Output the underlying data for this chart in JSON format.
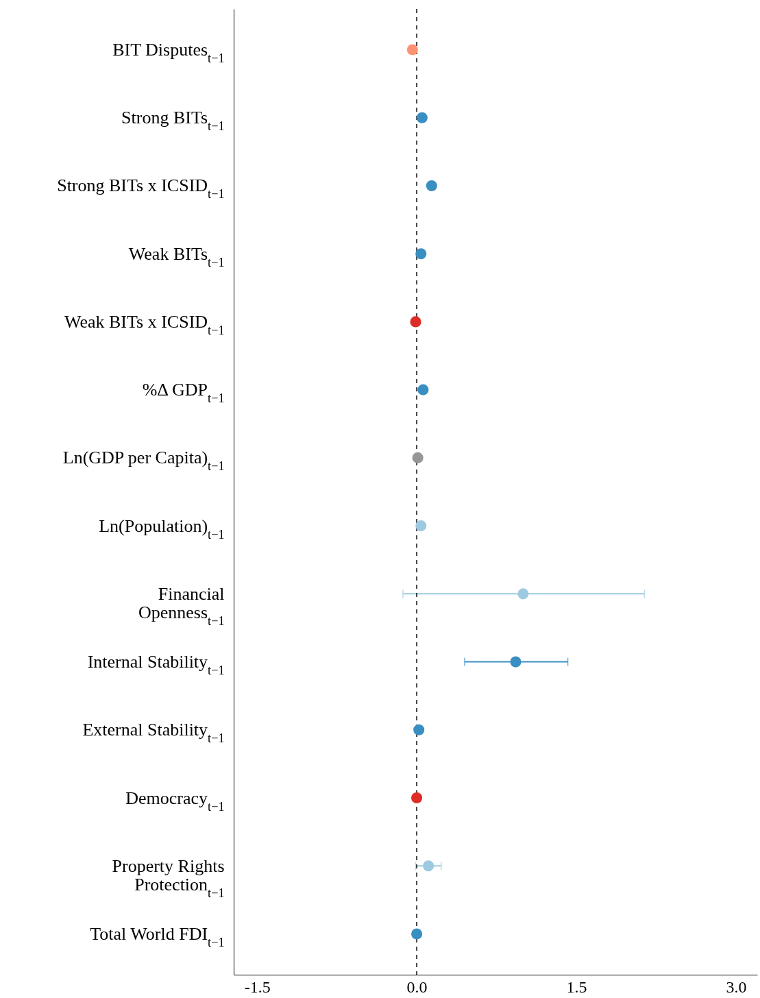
{
  "chart_data": {
    "type": "scatter",
    "orientation": "horizontal",
    "categories": [
      "BIT Disputes$_{t−1}$",
      "Strong BITs$_{t−1}$",
      "Strong BITs x ICSID$_{t−1}$",
      "Weak BITs$_{t−1}$",
      "Weak BITs x ICSID$_{t−1}$",
      "%Δ GDP$_{t−1}$",
      "Ln(GDP per Capita)$_{t−1}$",
      "Ln(Population)$_{t−1}$",
      "Financial\nOpenness$_{t−1}$",
      "Internal Stability$_{t−1}$",
      "External Stability$_{t−1}$",
      "Democracy$_{t−1}$",
      "Property Rights\nProtection$_{t−1}$",
      "Total World FDI$_{t−1}$"
    ],
    "values": [
      -0.04,
      0.05,
      0.14,
      0.04,
      -0.01,
      0.06,
      0.01,
      0.04,
      1.0,
      0.93,
      0.02,
      0.0,
      0.11,
      0.0
    ],
    "errors": [
      null,
      null,
      null,
      null,
      null,
      null,
      null,
      null,
      [
        -0.13,
        2.14
      ],
      [
        0.45,
        1.42
      ],
      null,
      null,
      [
        -0.01,
        0.23
      ],
      null
    ],
    "colors": [
      "#fc9272",
      "#3a8fc2",
      "#3a8fc2",
      "#3a8fc2",
      "#de2d26",
      "#3a8fc2",
      "#969696",
      "#9ecae1",
      "#9ecae1",
      "#3a8fc2",
      "#3a8fc2",
      "#de2d26",
      "#9ecae1",
      "#3a8fc2"
    ],
    "xlim": [
      -1.72,
      3.2
    ],
    "xticks": [
      {
        "value": -1.5,
        "label": "-1.5"
      },
      {
        "value": 0,
        "label": "0.0"
      },
      {
        "value": 1.5,
        "label": "1.5"
      },
      {
        "value": 3,
        "label": "3.0"
      }
    ],
    "ref_lines": [
      {
        "axis": "x",
        "value": 0,
        "color": "#000000",
        "line_style": "dashed"
      }
    ],
    "grid": false,
    "marker": "circle"
  }
}
